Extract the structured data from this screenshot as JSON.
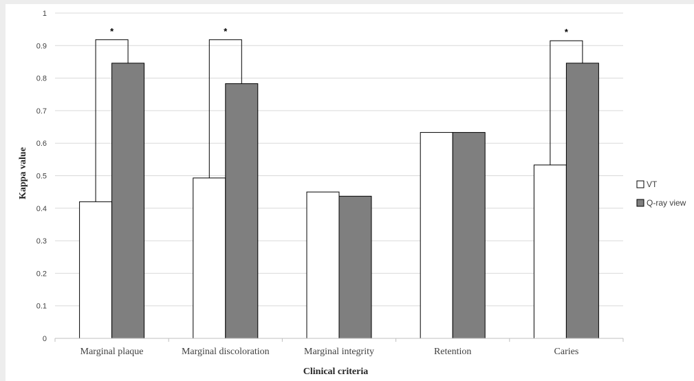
{
  "chart_data": {
    "type": "bar",
    "title": "",
    "xlabel": "Clinical criteria",
    "ylabel": "Kappa value",
    "ylim": [
      0,
      1
    ],
    "yticks": [
      "0",
      "0.1",
      "0.2",
      "0.3",
      "0.4",
      "0.5",
      "0.6",
      "0.7",
      "0.8",
      "0.9",
      "1"
    ],
    "grid": true,
    "legend_position": "right",
    "categories": [
      "Marginal plaque",
      "Marginal discoloration",
      "Marginal integrity",
      "Retention",
      "Caries"
    ],
    "series": [
      {
        "name": "VT",
        "color": "#ffffff",
        "values": [
          0.42,
          0.493,
          0.45,
          0.633,
          0.533
        ]
      },
      {
        "name": "Q-ray view",
        "color": "#7f7f7f",
        "values": [
          0.846,
          0.783,
          0.437,
          0.633,
          0.846
        ]
      }
    ],
    "significance": [
      {
        "category": "Marginal plaque",
        "marker": "*",
        "level": 0.918
      },
      {
        "category": "Marginal discoloration",
        "marker": "*",
        "level": 0.918
      },
      {
        "category": "Caries",
        "marker": "*",
        "level": 0.915
      }
    ]
  }
}
